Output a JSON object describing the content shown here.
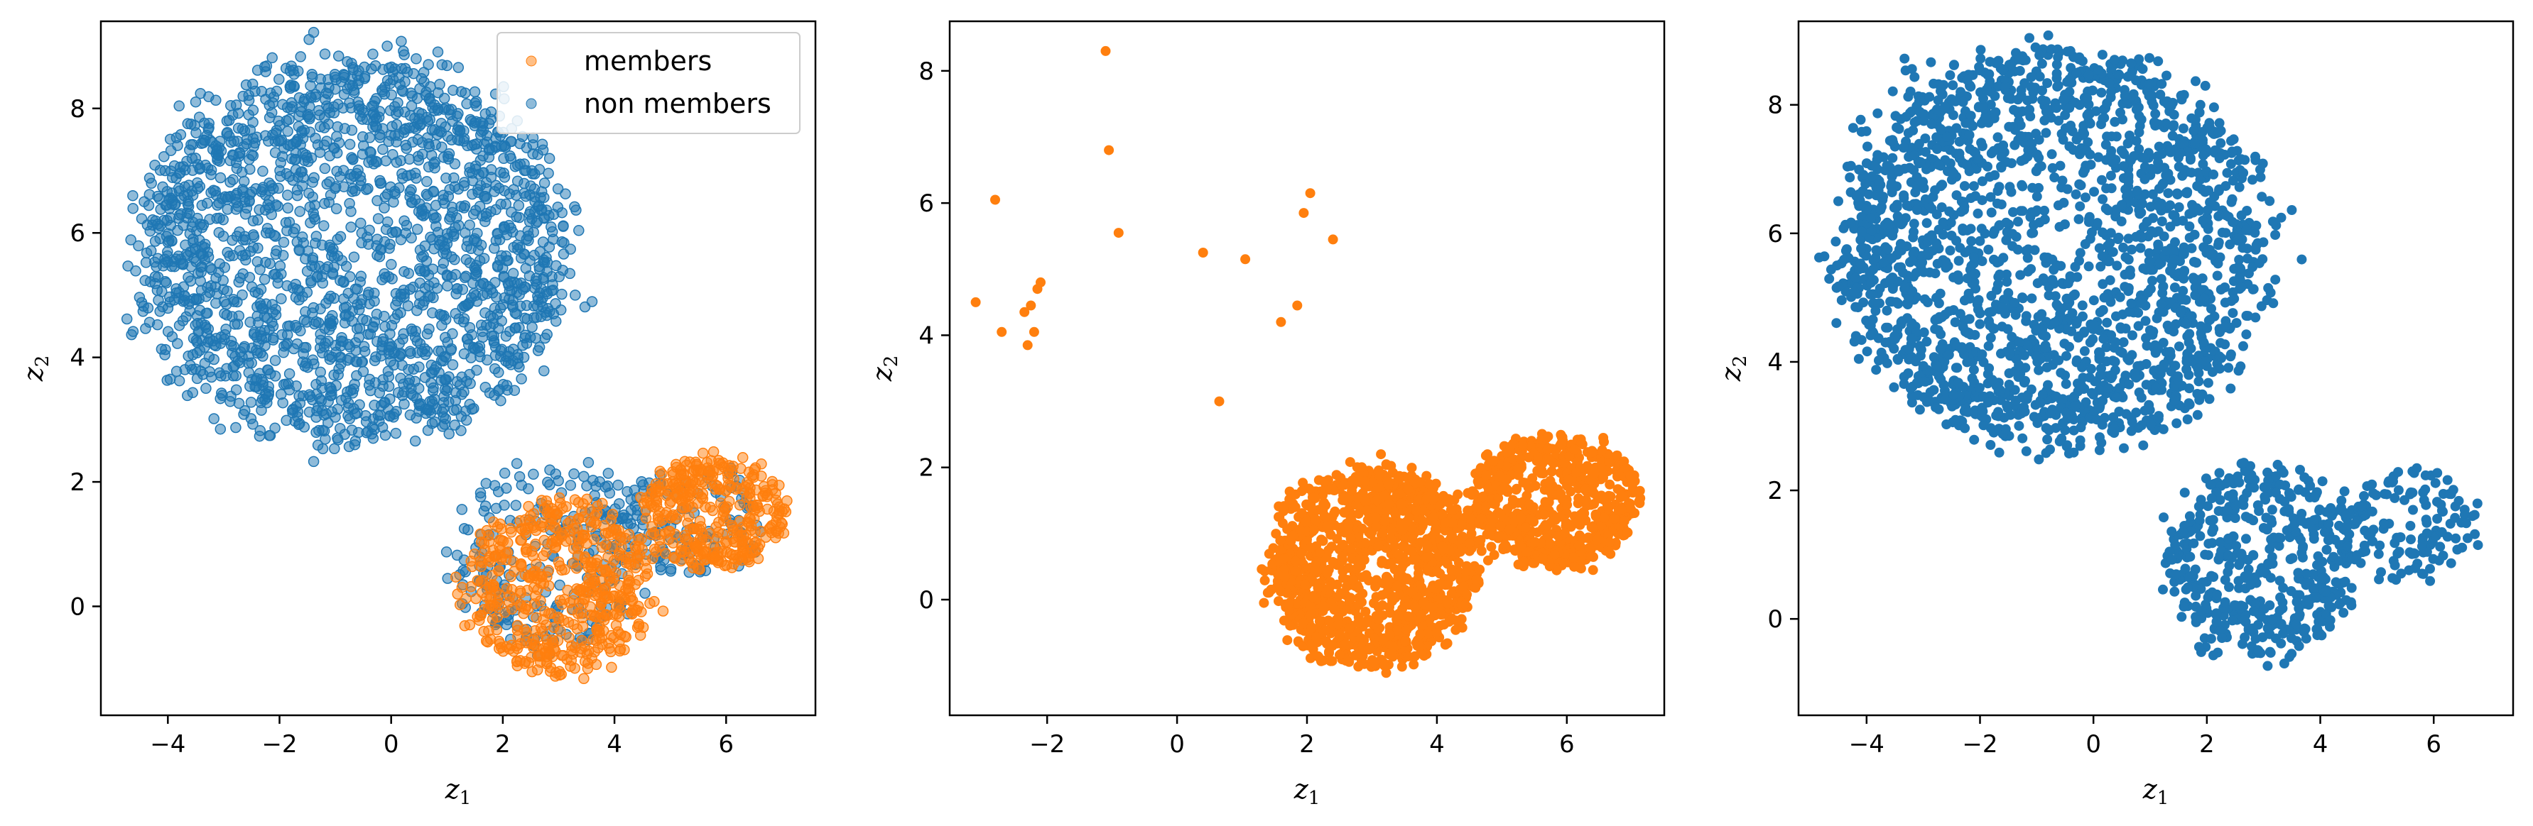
{
  "colors": {
    "members": "#ff7f0e",
    "non_members": "#1f77b4"
  },
  "chart_data": [
    {
      "type": "scatter",
      "panel": "left",
      "xlabel": "z1",
      "ylabel": "z2",
      "xlim": [
        -5.2,
        7.6
      ],
      "ylim": [
        -1.75,
        9.4
      ],
      "xticks": [
        -4,
        -2,
        0,
        2,
        4,
        6
      ],
      "yticks": [
        0,
        2,
        4,
        6,
        8
      ],
      "legend": {
        "position": "top-right",
        "entries": [
          "members",
          "non members"
        ]
      },
      "series": [
        {
          "name": "members",
          "color": "#ff7f0e",
          "alpha": 0.5,
          "clusters": [
            {
              "cx": 3.0,
              "cy": 0.3,
              "rx": 1.7,
              "ry": 1.4,
              "n": 520
            },
            {
              "cx": 5.8,
              "cy": 1.5,
              "rx": 1.3,
              "ry": 0.9,
              "n": 360
            }
          ]
        },
        {
          "name": "non members",
          "color": "#1f77b4",
          "alpha": 0.5,
          "clusters": [
            {
              "cx": -0.7,
              "cy": 5.7,
              "rx": 3.8,
              "ry": 3.1,
              "n": 2000
            },
            {
              "cx": 2.8,
              "cy": 0.8,
              "rx": 1.8,
              "ry": 1.5,
              "n": 230
            },
            {
              "cx": 5.5,
              "cy": 1.4,
              "rx": 1.3,
              "ry": 0.9,
              "n": 110
            }
          ]
        }
      ]
    },
    {
      "type": "scatter",
      "panel": "middle",
      "xlabel": "z1",
      "ylabel": "z2",
      "xlim": [
        -3.5,
        7.5
      ],
      "ylim": [
        -1.75,
        8.75
      ],
      "xticks": [
        -2,
        0,
        2,
        4,
        6
      ],
      "yticks": [
        0,
        2,
        4,
        6,
        8
      ],
      "series": [
        {
          "name": "members",
          "color": "#ff7f0e",
          "alpha": 1,
          "clusters": [
            {
              "cx": 3.0,
              "cy": 0.5,
              "rx": 1.6,
              "ry": 1.5,
              "n": 1200
            },
            {
              "cx": 5.8,
              "cy": 1.5,
              "rx": 1.3,
              "ry": 1.0,
              "n": 650
            }
          ],
          "points": [
            [
              -3.1,
              4.5
            ],
            [
              -2.8,
              6.05
            ],
            [
              -2.7,
              4.05
            ],
            [
              -2.35,
              4.35
            ],
            [
              -2.3,
              3.85
            ],
            [
              -2.25,
              4.45
            ],
            [
              -2.2,
              4.05
            ],
            [
              -2.15,
              4.7
            ],
            [
              -2.1,
              4.8
            ],
            [
              -1.1,
              8.3
            ],
            [
              -1.05,
              6.8
            ],
            [
              -0.9,
              5.55
            ],
            [
              0.4,
              5.25
            ],
            [
              0.65,
              3.0
            ],
            [
              1.05,
              5.15
            ],
            [
              1.6,
              4.2
            ],
            [
              1.85,
              4.45
            ],
            [
              1.95,
              5.85
            ],
            [
              2.05,
              6.15
            ],
            [
              2.4,
              5.45
            ]
          ]
        }
      ]
    },
    {
      "type": "scatter",
      "panel": "right",
      "xlabel": "z1",
      "ylabel": "z2",
      "xlim": [
        -5.2,
        7.4
      ],
      "ylim": [
        -1.5,
        9.3
      ],
      "xticks": [
        -4,
        -2,
        0,
        2,
        4,
        6
      ],
      "yticks": [
        0,
        2,
        4,
        6,
        8
      ],
      "series": [
        {
          "name": "non members",
          "color": "#1f77b4",
          "alpha": 1,
          "clusters": [
            {
              "cx": -0.7,
              "cy": 5.8,
              "rx": 3.8,
              "ry": 3.1,
              "n": 2100
            },
            {
              "cx": 3.0,
              "cy": 0.9,
              "rx": 1.7,
              "ry": 1.5,
              "n": 480
            },
            {
              "cx": 5.5,
              "cy": 1.5,
              "rx": 1.3,
              "ry": 0.9,
              "n": 140
            }
          ]
        }
      ]
    }
  ]
}
